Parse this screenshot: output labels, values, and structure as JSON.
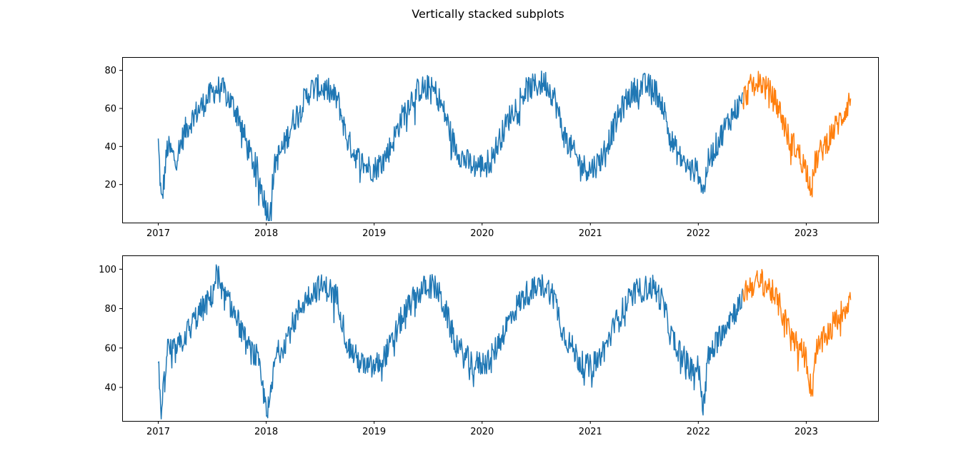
{
  "figure": {
    "title": "Vertically stacked subplots"
  },
  "chart_data": [
    {
      "type": "line",
      "title": "",
      "xlabel": "",
      "ylabel": "",
      "xlim": [
        "2016-09-01",
        "2023-09-01"
      ],
      "ylim": [
        0,
        87
      ],
      "xticks": [
        "2017",
        "2018",
        "2019",
        "2020",
        "2021",
        "2022",
        "2023"
      ],
      "yticks": [
        20,
        40,
        60,
        80
      ],
      "grid": false,
      "legend": "none",
      "series": [
        {
          "color": "#1f77b4",
          "x": [
            "2017-01-01",
            "2017-01-12",
            "2017-02-01",
            "2017-03-01",
            "2017-04-01",
            "2017-05-01",
            "2017-06-01",
            "2017-07-01",
            "2017-07-15",
            "2017-08-01",
            "2017-09-01",
            "2017-10-01",
            "2017-11-01",
            "2017-12-01",
            "2017-12-25",
            "2018-01-10",
            "2018-02-01",
            "2018-03-01",
            "2018-04-01",
            "2018-05-01",
            "2018-06-01",
            "2018-07-01",
            "2018-08-01",
            "2018-09-01",
            "2018-10-01",
            "2018-11-01",
            "2018-12-01",
            "2019-01-01",
            "2019-02-01",
            "2019-03-01",
            "2019-04-01",
            "2019-05-01",
            "2019-06-01",
            "2019-07-01",
            "2019-08-01",
            "2019-09-01",
            "2019-10-01",
            "2019-11-01",
            "2019-12-01",
            "2020-01-01",
            "2020-02-01",
            "2020-03-01",
            "2020-04-01",
            "2020-05-01",
            "2020-06-01",
            "2020-07-01",
            "2020-08-01",
            "2020-09-01",
            "2020-10-01",
            "2020-11-01",
            "2020-12-01",
            "2021-01-01",
            "2021-02-01",
            "2021-03-01",
            "2021-04-01",
            "2021-05-01",
            "2021-06-01",
            "2021-07-01",
            "2021-08-01",
            "2021-09-01",
            "2021-10-01",
            "2021-11-01",
            "2021-12-01",
            "2022-01-01",
            "2022-01-20",
            "2022-02-01",
            "2022-03-01",
            "2022-04-01",
            "2022-05-01",
            "2022-06-01"
          ],
          "values": [
            42,
            9,
            40,
            33,
            48,
            56,
            62,
            68,
            70,
            71,
            64,
            56,
            38,
            28,
            12,
            4,
            32,
            40,
            53,
            62,
            70,
            71,
            69,
            64,
            44,
            35,
            30,
            28,
            33,
            41,
            54,
            64,
            70,
            71,
            68,
            55,
            40,
            33,
            30,
            30,
            33,
            44,
            55,
            64,
            70,
            72,
            74,
            66,
            47,
            38,
            30,
            28,
            32,
            42,
            54,
            64,
            70,
            72,
            71,
            63,
            43,
            34,
            28,
            27,
            16,
            31,
            40,
            50,
            58,
            64
          ]
        },
        {
          "color": "#ff7f0e",
          "x": [
            "2022-06-01",
            "2022-07-01",
            "2022-08-01",
            "2022-09-01",
            "2022-10-01",
            "2022-11-01",
            "2022-12-01",
            "2023-01-01",
            "2023-01-20",
            "2023-02-01",
            "2023-03-01",
            "2023-04-01",
            "2023-05-01",
            "2023-06-01"
          ],
          "values": [
            65,
            72,
            74,
            68,
            60,
            45,
            38,
            28,
            18,
            32,
            40,
            48,
            55,
            66
          ]
        }
      ]
    },
    {
      "type": "line",
      "title": "",
      "xlabel": "",
      "ylabel": "",
      "xlim": [
        "2016-09-01",
        "2023-09-01"
      ],
      "ylim": [
        23,
        107
      ],
      "xticks": [
        "2017",
        "2018",
        "2019",
        "2020",
        "2021",
        "2022",
        "2023"
      ],
      "yticks": [
        40,
        60,
        80,
        100
      ],
      "grid": false,
      "legend": "none",
      "series": [
        {
          "color": "#1f77b4",
          "x": [
            "2017-01-01",
            "2017-01-12",
            "2017-02-01",
            "2017-03-01",
            "2017-04-01",
            "2017-05-01",
            "2017-06-01",
            "2017-07-01",
            "2017-07-20",
            "2017-08-01",
            "2017-09-01",
            "2017-10-01",
            "2017-11-01",
            "2017-12-01",
            "2017-12-25",
            "2018-01-10",
            "2018-02-01",
            "2018-03-01",
            "2018-04-01",
            "2018-05-01",
            "2018-06-01",
            "2018-07-01",
            "2018-08-01",
            "2018-09-01",
            "2018-10-01",
            "2018-11-01",
            "2018-12-01",
            "2019-01-01",
            "2019-02-01",
            "2019-03-01",
            "2019-04-01",
            "2019-05-01",
            "2019-06-01",
            "2019-07-01",
            "2019-08-01",
            "2019-09-01",
            "2019-10-01",
            "2019-11-01",
            "2019-12-01",
            "2020-01-01",
            "2020-02-01",
            "2020-03-01",
            "2020-04-01",
            "2020-05-01",
            "2020-06-01",
            "2020-07-01",
            "2020-08-01",
            "2020-09-01",
            "2020-10-01",
            "2020-11-01",
            "2020-12-01",
            "2021-01-01",
            "2021-02-01",
            "2021-03-01",
            "2021-04-01",
            "2021-05-01",
            "2021-06-01",
            "2021-07-01",
            "2021-08-01",
            "2021-09-01",
            "2021-10-01",
            "2021-11-01",
            "2021-12-01",
            "2022-01-01",
            "2022-01-20",
            "2022-02-01",
            "2022-03-01",
            "2022-04-01",
            "2022-05-01",
            "2022-06-01"
          ],
          "values": [
            52,
            27,
            60,
            58,
            66,
            74,
            80,
            86,
            100,
            88,
            82,
            72,
            60,
            55,
            35,
            28,
            55,
            62,
            72,
            82,
            88,
            91,
            90,
            85,
            62,
            55,
            50,
            50,
            55,
            62,
            74,
            82,
            88,
            92,
            90,
            78,
            63,
            56,
            52,
            52,
            55,
            64,
            74,
            82,
            88,
            90,
            92,
            86,
            68,
            60,
            52,
            50,
            55,
            63,
            74,
            82,
            88,
            90,
            91,
            84,
            66,
            58,
            50,
            50,
            30,
            54,
            62,
            72,
            78,
            84
          ]
        },
        {
          "color": "#ff7f0e",
          "x": [
            "2022-06-01",
            "2022-07-01",
            "2022-08-01",
            "2022-09-01",
            "2022-10-01",
            "2022-11-01",
            "2022-12-01",
            "2023-01-01",
            "2023-01-20",
            "2023-02-01",
            "2023-03-01",
            "2023-04-01",
            "2023-05-01",
            "2023-06-01"
          ],
          "values": [
            88,
            92,
            94,
            90,
            82,
            70,
            62,
            55,
            36,
            58,
            64,
            72,
            78,
            86
          ]
        }
      ]
    }
  ]
}
